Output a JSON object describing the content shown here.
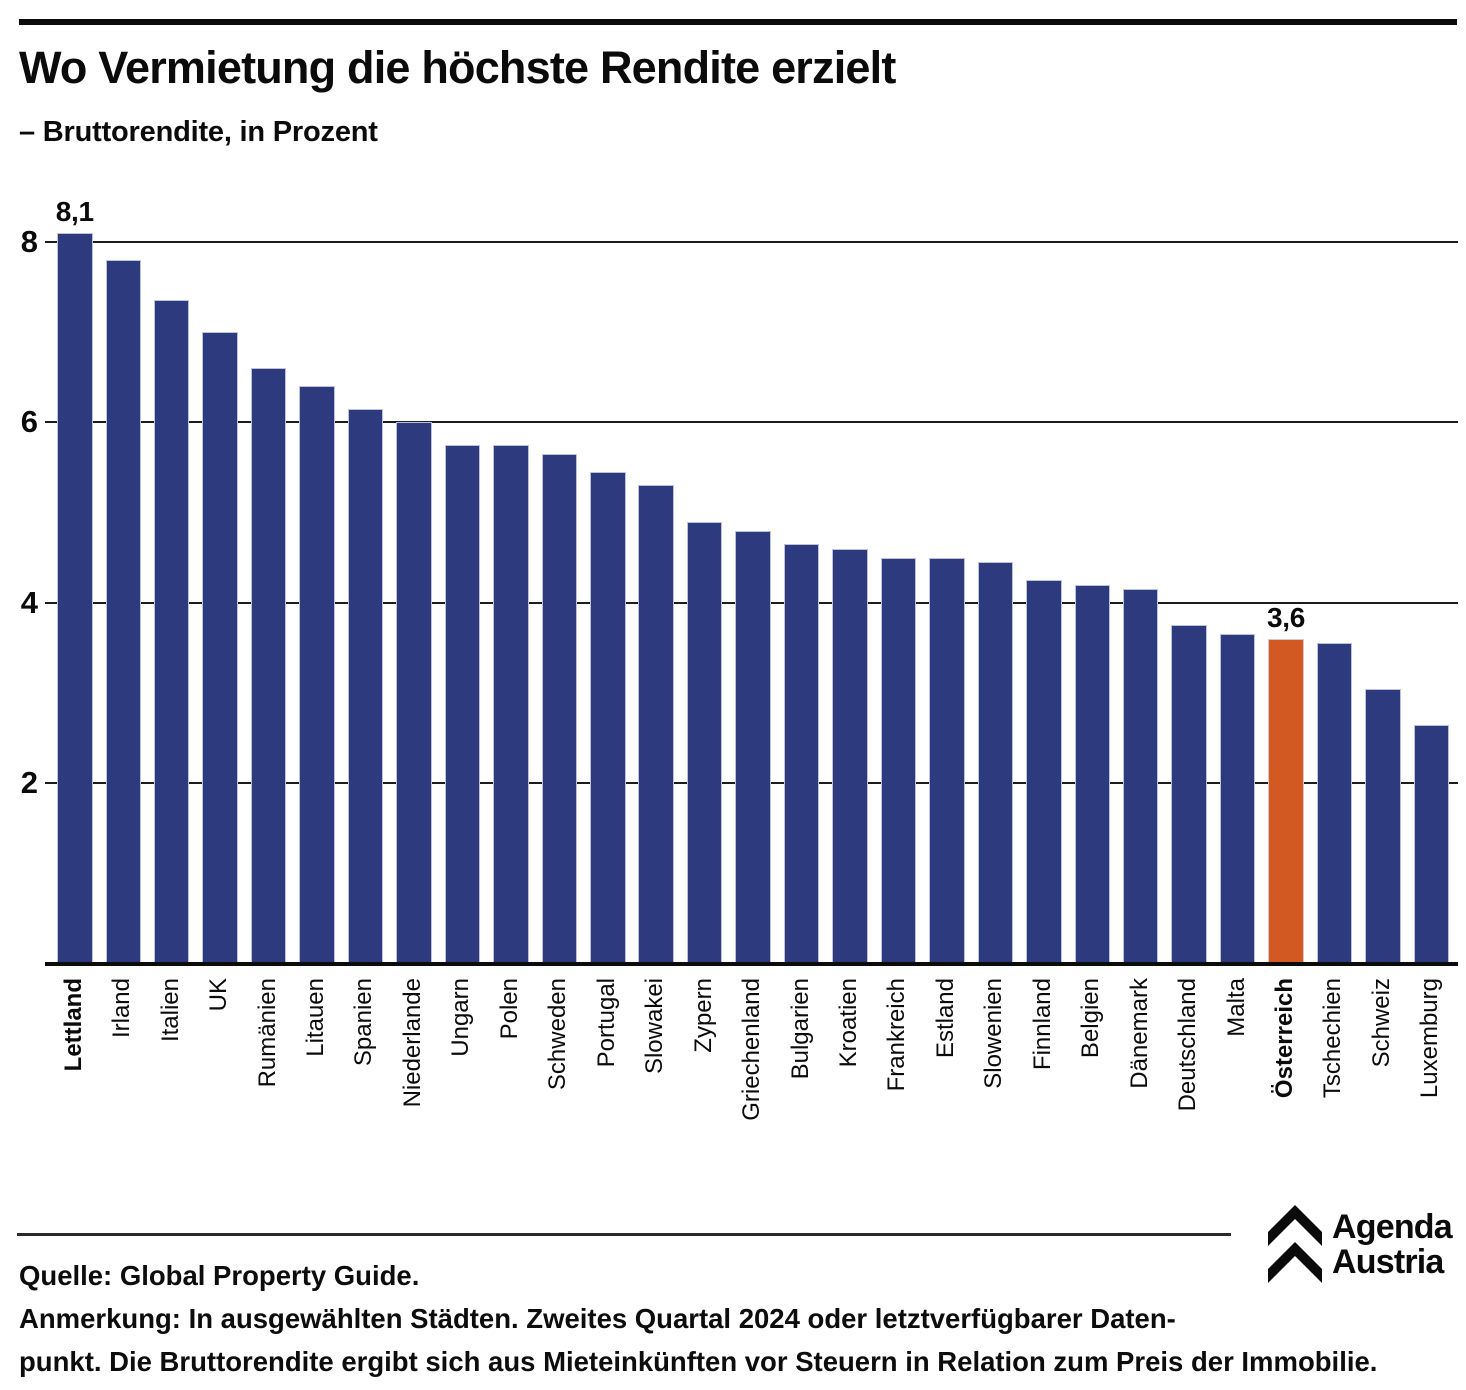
{
  "header": {
    "title": "Wo Vermietung die höchste Rendite erzielt",
    "subtitle": "– Bruttorendite, in Prozent"
  },
  "chart_data": {
    "type": "bar",
    "title": "Wo Vermietung die höchste Rendite erzielt",
    "subtitle": "– Bruttorendite, in Prozent",
    "ylabel": "Bruttorendite in Prozent",
    "ylim": [
      0,
      8.6
    ],
    "yticks": [
      2,
      4,
      6,
      8
    ],
    "grid": true,
    "legend": "none",
    "categories": [
      "Lettland",
      "Irland",
      "Italien",
      "UK",
      "Rumänien",
      "Litauen",
      "Spanien",
      "Niederlande",
      "Ungarn",
      "Polen",
      "Schweden",
      "Portugal",
      "Slowakei",
      "Zypern",
      "Griechenland",
      "Bulgarien",
      "Kroatien",
      "Frankreich",
      "Estland",
      "Slowenien",
      "Finnland",
      "Belgien",
      "Dänemark",
      "Deutschland",
      "Malta",
      "Österreich",
      "Tschechien",
      "Schweiz",
      "Luxemburg"
    ],
    "values": [
      8.1,
      7.8,
      7.35,
      7.0,
      6.6,
      6.4,
      6.15,
      6.0,
      5.75,
      5.75,
      5.65,
      5.45,
      5.3,
      4.9,
      4.8,
      4.65,
      4.6,
      4.5,
      4.5,
      4.45,
      4.25,
      4.2,
      4.15,
      3.75,
      3.65,
      3.6,
      3.55,
      3.05,
      2.65
    ],
    "value_labels": {
      "Lettland": "8,1",
      "Österreich": "3,6"
    },
    "bold_categories": [
      "Lettland",
      "Österreich"
    ],
    "highlight_category": "Österreich",
    "bar_color": "#2E3A7E",
    "highlight_color": "#D25A22"
  },
  "footer": {
    "source": "Quelle: Global Property Guide.",
    "note_line1": "Anmerkung: In ausgewählten Städten. Zweites Quartal 2024 oder letztverfügbarer Daten-",
    "note_line2": "punkt. Die Bruttorendite ergibt sich aus Mieteinkünften vor Steuern in Relation zum Preis der Immobilie.",
    "logo": {
      "line1": "Agenda",
      "line2": "Austria",
      "icon": "double-chevron-up-icon"
    }
  }
}
